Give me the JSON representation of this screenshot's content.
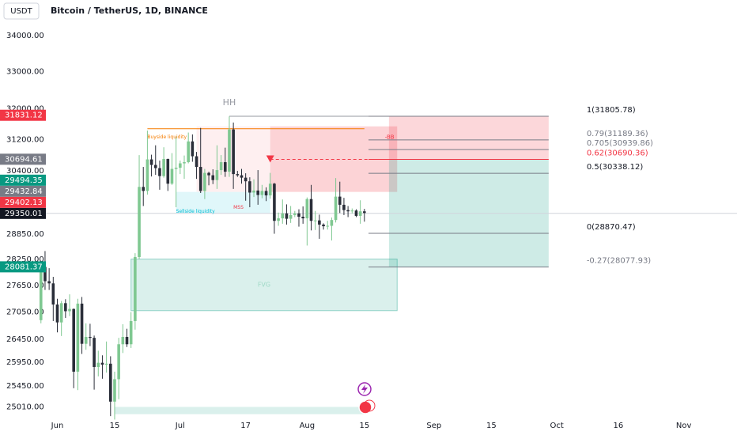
{
  "chart_data": {
    "type": "candlestick",
    "currency": "USDT",
    "title": "Bitcoin / TetherUS, 1D, BINANCE",
    "up_color": "#7fc891",
    "down_color": "#2a2e39",
    "log_scale": true,
    "xlim": [
      "May 18",
      "Nov 14"
    ],
    "ylim": [
      24790,
      35014
    ],
    "yticks": [
      {
        "value": 34000,
        "label": "34000.00"
      },
      {
        "value": 33000,
        "label": "33000.00"
      },
      {
        "value": 32000,
        "label": "32000.00"
      },
      {
        "value": 31200,
        "label": "31200.00"
      },
      {
        "value": 30400,
        "label": "30400.00"
      },
      {
        "value": 28850,
        "label": "28850.00"
      },
      {
        "value": 28250,
        "label": "28250.00"
      },
      {
        "value": 27650,
        "label": "27650.00"
      },
      {
        "value": 27050,
        "label": "27050.00"
      },
      {
        "value": 26450,
        "label": "26450.00"
      },
      {
        "value": 25950,
        "label": "25950.00"
      },
      {
        "value": 25450,
        "label": "25450.00"
      },
      {
        "value": 25010,
        "label": "25010.00"
      }
    ],
    "xticks": [
      {
        "value": "Jun 1",
        "label": "Jun"
      },
      {
        "value": "Jun 15",
        "label": "15"
      },
      {
        "value": "Jul 1",
        "label": "Jul"
      },
      {
        "value": "Jul 17",
        "label": "17"
      },
      {
        "value": "Aug 1",
        "label": "Aug"
      },
      {
        "value": "Aug 15",
        "label": "15"
      },
      {
        "value": "Sep 1",
        "label": "Sep"
      },
      {
        "value": "Sep 15",
        "label": "15"
      },
      {
        "value": "Oct 1",
        "label": "Oct"
      },
      {
        "value": "Oct 16",
        "label": "16"
      },
      {
        "value": "Nov 1",
        "label": "Nov"
      }
    ],
    "candles": [
      {
        "date": "May 28",
        "open": 26870,
        "high": 28200,
        "low": 26800,
        "close": 28080
      },
      {
        "date": "May 29",
        "open": 28080,
        "high": 28450,
        "low": 27550,
        "close": 27750
      },
      {
        "date": "May 30",
        "open": 27750,
        "high": 28050,
        "low": 27550,
        "close": 27700
      },
      {
        "date": "May 31",
        "open": 27700,
        "high": 27850,
        "low": 26850,
        "close": 27220
      },
      {
        "date": "Jun 1",
        "open": 27220,
        "high": 27350,
        "low": 26600,
        "close": 26820
      },
      {
        "date": "Jun 2",
        "open": 26820,
        "high": 27300,
        "low": 26520,
        "close": 27250
      },
      {
        "date": "Jun 3",
        "open": 27250,
        "high": 27340,
        "low": 26920,
        "close": 27070
      },
      {
        "date": "Jun 4",
        "open": 27070,
        "high": 27450,
        "low": 26960,
        "close": 27120
      },
      {
        "date": "Jun 5",
        "open": 27120,
        "high": 27130,
        "low": 25400,
        "close": 25750
      },
      {
        "date": "Jun 6",
        "open": 25750,
        "high": 27350,
        "low": 25360,
        "close": 27240
      },
      {
        "date": "Jun 7",
        "open": 27240,
        "high": 27390,
        "low": 26130,
        "close": 26350
      },
      {
        "date": "Jun 8",
        "open": 26350,
        "high": 26800,
        "low": 26220,
        "close": 26500
      },
      {
        "date": "Jun 9",
        "open": 26500,
        "high": 26790,
        "low": 26300,
        "close": 26480
      },
      {
        "date": "Jun 10",
        "open": 26480,
        "high": 26530,
        "low": 25370,
        "close": 25850
      },
      {
        "date": "Jun 11",
        "open": 25850,
        "high": 26200,
        "low": 25650,
        "close": 25940
      },
      {
        "date": "Jun 12",
        "open": 25940,
        "high": 26100,
        "low": 25600,
        "close": 25900
      },
      {
        "date": "Jun 13",
        "open": 25900,
        "high": 26400,
        "low": 25730,
        "close": 25920
      },
      {
        "date": "Jun 14",
        "open": 25920,
        "high": 26080,
        "low": 24820,
        "close": 25120
      },
      {
        "date": "Jun 15",
        "open": 25120,
        "high": 25750,
        "low": 24750,
        "close": 25590
      },
      {
        "date": "Jun 16",
        "open": 25590,
        "high": 26480,
        "low": 25170,
        "close": 26340
      },
      {
        "date": "Jun 17",
        "open": 26340,
        "high": 26780,
        "low": 26150,
        "close": 26500
      },
      {
        "date": "Jun 18",
        "open": 26500,
        "high": 26680,
        "low": 26280,
        "close": 26340
      },
      {
        "date": "Jun 19",
        "open": 26340,
        "high": 27050,
        "low": 26260,
        "close": 26850
      },
      {
        "date": "Jun 20",
        "open": 26850,
        "high": 28400,
        "low": 26660,
        "close": 28310
      },
      {
        "date": "Jun 21",
        "open": 28310,
        "high": 30800,
        "low": 28260,
        "close": 30000
      },
      {
        "date": "Jun 22",
        "open": 30000,
        "high": 30500,
        "low": 29530,
        "close": 29900
      },
      {
        "date": "Jun 23",
        "open": 29900,
        "high": 31430,
        "low": 29810,
        "close": 30690
      },
      {
        "date": "Jun 24",
        "open": 30690,
        "high": 30810,
        "low": 30260,
        "close": 30550
      },
      {
        "date": "Jun 25",
        "open": 30550,
        "high": 31050,
        "low": 30300,
        "close": 30470
      },
      {
        "date": "Jun 26",
        "open": 30470,
        "high": 30660,
        "low": 29930,
        "close": 30270
      },
      {
        "date": "Jun 27",
        "open": 30270,
        "high": 31000,
        "low": 30230,
        "close": 30700
      },
      {
        "date": "Jun 28",
        "open": 30700,
        "high": 30710,
        "low": 29900,
        "close": 30080
      },
      {
        "date": "Jun 29",
        "open": 30080,
        "high": 30850,
        "low": 30050,
        "close": 30450
      },
      {
        "date": "Jun 30",
        "open": 30450,
        "high": 31280,
        "low": 29500,
        "close": 30480
      },
      {
        "date": "Jul 1",
        "open": 30480,
        "high": 30660,
        "low": 30320,
        "close": 30590
      },
      {
        "date": "Jul 2",
        "open": 30590,
        "high": 30790,
        "low": 30200,
        "close": 30620
      },
      {
        "date": "Jul 3",
        "open": 30620,
        "high": 31380,
        "low": 30590,
        "close": 31150
      },
      {
        "date": "Jul 4",
        "open": 31150,
        "high": 31330,
        "low": 30630,
        "close": 30770
      },
      {
        "date": "Jul 5",
        "open": 30770,
        "high": 30880,
        "low": 30200,
        "close": 30500
      },
      {
        "date": "Jul 6",
        "open": 30500,
        "high": 31500,
        "low": 29850,
        "close": 29900
      },
      {
        "date": "Jul 7",
        "open": 29900,
        "high": 30450,
        "low": 29700,
        "close": 30350
      },
      {
        "date": "Jul 8",
        "open": 30350,
        "high": 30380,
        "low": 30040,
        "close": 30290
      },
      {
        "date": "Jul 9",
        "open": 30290,
        "high": 30440,
        "low": 30070,
        "close": 30170
      },
      {
        "date": "Jul 10",
        "open": 30170,
        "high": 31050,
        "low": 29950,
        "close": 30420
      },
      {
        "date": "Jul 11",
        "open": 30420,
        "high": 30800,
        "low": 30300,
        "close": 30620
      },
      {
        "date": "Jul 12",
        "open": 30620,
        "high": 30990,
        "low": 30250,
        "close": 30380
      },
      {
        "date": "Jul 13",
        "open": 30380,
        "high": 31800,
        "low": 30250,
        "close": 31460
      },
      {
        "date": "Jul 14",
        "open": 31460,
        "high": 31640,
        "low": 29950,
        "close": 30320
      },
      {
        "date": "Jul 15",
        "open": 30320,
        "high": 30400,
        "low": 30250,
        "close": 30290
      },
      {
        "date": "Jul 16",
        "open": 30290,
        "high": 30450,
        "low": 30080,
        "close": 30230
      },
      {
        "date": "Jul 17",
        "open": 30230,
        "high": 30340,
        "low": 29660,
        "close": 30140
      },
      {
        "date": "Jul 18",
        "open": 30140,
        "high": 30240,
        "low": 29500,
        "close": 29860
      },
      {
        "date": "Jul 19",
        "open": 29860,
        "high": 30190,
        "low": 29750,
        "close": 29910
      },
      {
        "date": "Jul 20",
        "open": 29910,
        "high": 30420,
        "low": 29560,
        "close": 29800
      },
      {
        "date": "Jul 21",
        "open": 29800,
        "high": 30050,
        "low": 29720,
        "close": 29900
      },
      {
        "date": "Jul 22",
        "open": 29900,
        "high": 29990,
        "low": 29650,
        "close": 29790
      },
      {
        "date": "Jul 23",
        "open": 29790,
        "high": 30350,
        "low": 29710,
        "close": 30080
      },
      {
        "date": "Jul 24",
        "open": 30080,
        "high": 30100,
        "low": 28860,
        "close": 29170
      },
      {
        "date": "Jul 25",
        "open": 29170,
        "high": 29370,
        "low": 29050,
        "close": 29230
      },
      {
        "date": "Jul 26",
        "open": 29230,
        "high": 29690,
        "low": 29100,
        "close": 29350
      },
      {
        "date": "Jul 27",
        "open": 29350,
        "high": 29570,
        "low": 29080,
        "close": 29220
      },
      {
        "date": "Jul 28",
        "open": 29220,
        "high": 29530,
        "low": 29120,
        "close": 29310
      },
      {
        "date": "Jul 29",
        "open": 29310,
        "high": 29410,
        "low": 29260,
        "close": 29350
      },
      {
        "date": "Jul 30",
        "open": 29350,
        "high": 29450,
        "low": 29030,
        "close": 29270
      },
      {
        "date": "Jul 31",
        "open": 29270,
        "high": 29520,
        "low": 29100,
        "close": 29230
      },
      {
        "date": "Aug 1",
        "open": 29230,
        "high": 29740,
        "low": 28580,
        "close": 29700
      },
      {
        "date": "Aug 2",
        "open": 29700,
        "high": 30050,
        "low": 28940,
        "close": 29170
      },
      {
        "date": "Aug 3",
        "open": 29170,
        "high": 29410,
        "low": 28950,
        "close": 29180
      },
      {
        "date": "Aug 4",
        "open": 29180,
        "high": 29320,
        "low": 28740,
        "close": 29080
      },
      {
        "date": "Aug 5",
        "open": 29080,
        "high": 29110,
        "low": 28960,
        "close": 29040
      },
      {
        "date": "Aug 6",
        "open": 29040,
        "high": 29170,
        "low": 28960,
        "close": 29050
      },
      {
        "date": "Aug 7",
        "open": 29050,
        "high": 29250,
        "low": 28700,
        "close": 29190
      },
      {
        "date": "Aug 8",
        "open": 29190,
        "high": 30220,
        "low": 29130,
        "close": 29760
      },
      {
        "date": "Aug 9",
        "open": 29760,
        "high": 30130,
        "low": 29360,
        "close": 29560
      },
      {
        "date": "Aug 10",
        "open": 29560,
        "high": 29730,
        "low": 29310,
        "close": 29430
      },
      {
        "date": "Aug 11",
        "open": 29430,
        "high": 29530,
        "low": 29260,
        "close": 29400
      },
      {
        "date": "Aug 12",
        "open": 29400,
        "high": 29470,
        "low": 29350,
        "close": 29420
      },
      {
        "date": "Aug 13",
        "open": 29420,
        "high": 29450,
        "low": 29260,
        "close": 29290
      },
      {
        "date": "Aug 14",
        "open": 29290,
        "high": 29670,
        "low": 29100,
        "close": 29400
      },
      {
        "date": "Aug 15",
        "open": 29400,
        "high": 29460,
        "low": 29150,
        "close": 29360
      }
    ],
    "zones": [
      {
        "from": "Jul 5",
        "to": "Jul 23",
        "top": 31540,
        "bottom": 29876,
        "color": "rgba(242,54,69,0.08)"
      },
      {
        "from": "Jul 23",
        "to": "Aug 23",
        "top": 31540,
        "bottom": 29876,
        "color": "rgba(242,54,69,0.22)"
      },
      {
        "from": "Jun 30",
        "to": "Jul 23",
        "top": 29876,
        "bottom": 29357,
        "color": "rgba(0,188,212,0.12)"
      },
      {
        "name": "FVG",
        "from": "Jun 19",
        "to": "Aug 23",
        "top": 28262,
        "bottom": 27082,
        "color": "rgba(8,153,129,0.15)",
        "text_color": "#9fd9c6"
      },
      {
        "from": "Jun 15",
        "to": "Aug 15",
        "top": 25010,
        "bottom": 24860,
        "color": "rgba(8,153,129,0.15)"
      },
      {
        "from": "Aug 21",
        "to": "Sep 29",
        "top": 31805.78,
        "bottom": 30690.36,
        "color": "rgba(242,54,69,0.2)"
      },
      {
        "from": "Aug 21",
        "to": "Sep 29",
        "top": 30690.36,
        "bottom": 28077.93,
        "color": "rgba(8,153,129,0.2)"
      }
    ],
    "lines": [
      {
        "from": "Jun 23",
        "to": "Aug 15",
        "price": 31478,
        "color": "#f57c00"
      },
      {
        "from": "Jul 13",
        "to": "Aug 16",
        "price": 31805.78,
        "color": "#9598a1"
      },
      {
        "from": "Jul 23",
        "to": "Aug 21",
        "price": 30690.36,
        "color": "#f23645",
        "dashed": true
      },
      {
        "from": "May 18",
        "to": "Nov 14",
        "price": 29350.01,
        "color": "#d1d4dc"
      }
    ],
    "marker": {
      "date": "Jul 23",
      "price": 30690.36,
      "color": "#f23645"
    },
    "annotations": [
      {
        "text": "HH",
        "date": "Jul 13",
        "price": 32165,
        "color": "#9598a1",
        "size": 11
      },
      {
        "text": "Buyside liquidity",
        "date": "Jun 23",
        "price": 31260,
        "color": "#f57c00",
        "size": 6
      },
      {
        "text": "Sellside liquidity",
        "date": "Jun 30",
        "price": 29395,
        "color": "#00bcd4",
        "size": 6
      },
      {
        "text": "MSS",
        "date": "Jul 14",
        "price": 29490,
        "color": "#f23645",
        "size": 6
      },
      {
        "text": "-BB",
        "date": "Aug 20",
        "price": 31260,
        "color": "#f23645",
        "size": 7
      }
    ],
    "fib": {
      "from": "Aug 16",
      "to": "Sep 29",
      "label_date": "Sep 29",
      "levels": [
        {
          "value": 31805.78,
          "label": "1(31805.78)",
          "color": "#131722"
        },
        {
          "value": 31189.36,
          "label": "0.79(31189.36)",
          "color": "#787b86"
        },
        {
          "value": 30939.86,
          "label": "0.705(30939.86)",
          "color": "#787b86"
        },
        {
          "value": 30690.36,
          "label": "0.62(30690.36)",
          "color": "#f23645"
        },
        {
          "value": 30338.12,
          "label": "0.5(30338.12)",
          "color": "#131722"
        },
        {
          "value": 28870.47,
          "label": "0(28870.47)",
          "color": "#131722"
        },
        {
          "value": 28077.93,
          "label": "-0.27(28077.93)",
          "color": "#787b86"
        }
      ]
    },
    "price_badges": [
      {
        "value": 31831.12,
        "color": "#f23645"
      },
      {
        "value": 30694.61,
        "color": "#787b86"
      },
      {
        "value": 29494.35,
        "color": "#089981"
      },
      {
        "value": 29432.84,
        "color": "#787b86"
      },
      {
        "value": 29402.13,
        "color": "#f23645"
      },
      {
        "value": 29350.01,
        "color": "#131722"
      },
      {
        "value": 28081.37,
        "color": "#089981"
      }
    ]
  }
}
